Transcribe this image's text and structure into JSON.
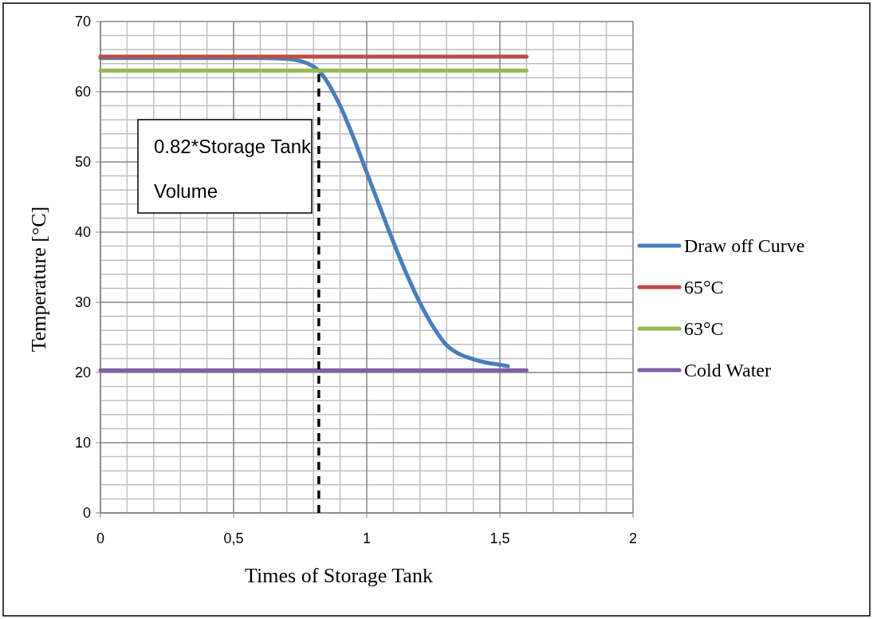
{
  "chart_data": {
    "type": "line",
    "xlabel": "Times of Storage Tank",
    "ylabel": "Temperature [°C]",
    "xlim": [
      0,
      2
    ],
    "xticks": [
      0,
      {
        "value": 0.5,
        "label": "0,5"
      },
      1,
      {
        "value": 1.5,
        "label": "1,5"
      },
      2
    ],
    "ylim": [
      0,
      70
    ],
    "yticks": [
      0,
      10,
      20,
      30,
      40,
      50,
      60,
      70
    ],
    "grid": true,
    "legend": "right",
    "marker": "none",
    "annotations": [
      "0.82*Storage Tank Volume"
    ],
    "series": [
      {
        "name": "Draw off Curve",
        "color": "#4a7ebb",
        "x": [
          0,
          0.3,
          0.6,
          0.7,
          0.75,
          0.8,
          0.82,
          0.85,
          0.9,
          0.95,
          1.0,
          1.05,
          1.1,
          1.15,
          1.2,
          1.25,
          1.3,
          1.35,
          1.4,
          1.45,
          1.5,
          1.53
        ],
        "values": [
          64.8,
          64.8,
          64.8,
          64.7,
          64.4,
          63.6,
          63,
          61.5,
          58,
          53.5,
          48.5,
          43.5,
          38.6,
          34,
          29.9,
          26.5,
          23.9,
          22.6,
          21.9,
          21.4,
          21.1,
          20.9
        ]
      },
      {
        "name": "65°C",
        "color": "#be4b48",
        "x": [
          0,
          1.6
        ],
        "values": [
          65,
          65
        ]
      },
      {
        "name": "63°C",
        "color": "#98b954",
        "x": [
          0,
          1.6
        ],
        "values": [
          63,
          63
        ]
      },
      {
        "name": "Cold Water",
        "color": "#7d60a0",
        "x": [
          0,
          1.6
        ],
        "values": [
          20.3,
          20.3
        ]
      },
      {
        "color": "#000000",
        "x": [
          0.82,
          0.82
        ],
        "values": [
          0,
          63
        ],
        "line_style": "dashed"
      }
    ]
  }
}
